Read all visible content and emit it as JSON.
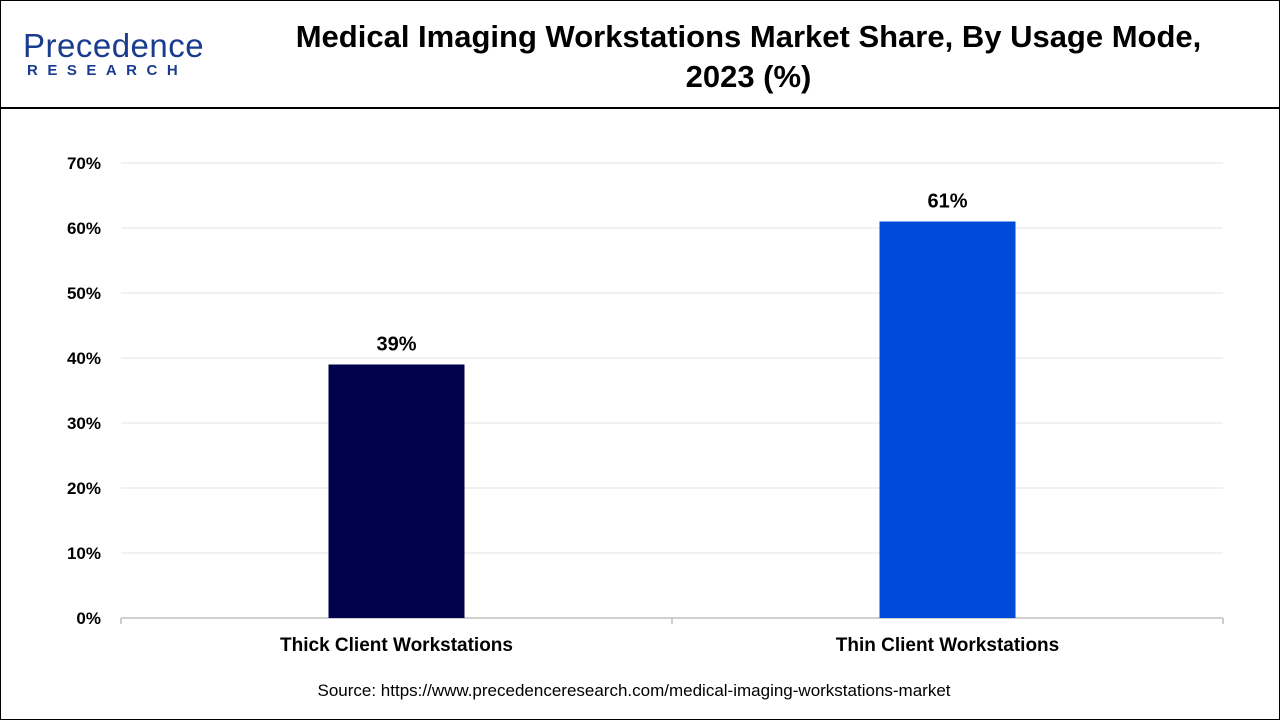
{
  "brand": {
    "logo_main": "Precedence",
    "logo_sub": "RESEARCH",
    "color": "#1a3c8f"
  },
  "chart_data": {
    "type": "bar",
    "title": "Medical Imaging Workstations Market Share, By Usage Mode, 2023 (%)",
    "categories": [
      "Thick Client Workstations",
      "Thin Client Workstations"
    ],
    "values": [
      39,
      61
    ],
    "data_labels": [
      "39%",
      "61%"
    ],
    "colors": [
      "#00004d",
      "#004ad9"
    ],
    "ylim": [
      0,
      70
    ],
    "yticks": [
      0,
      10,
      20,
      30,
      40,
      50,
      60,
      70
    ],
    "ytick_labels": [
      "0%",
      "10%",
      "20%",
      "30%",
      "40%",
      "50%",
      "60%",
      "70%"
    ],
    "grid": true,
    "xlabel": "",
    "ylabel": ""
  },
  "source": "Source: https://www.precedenceresearch.com/medical-imaging-workstations-market"
}
